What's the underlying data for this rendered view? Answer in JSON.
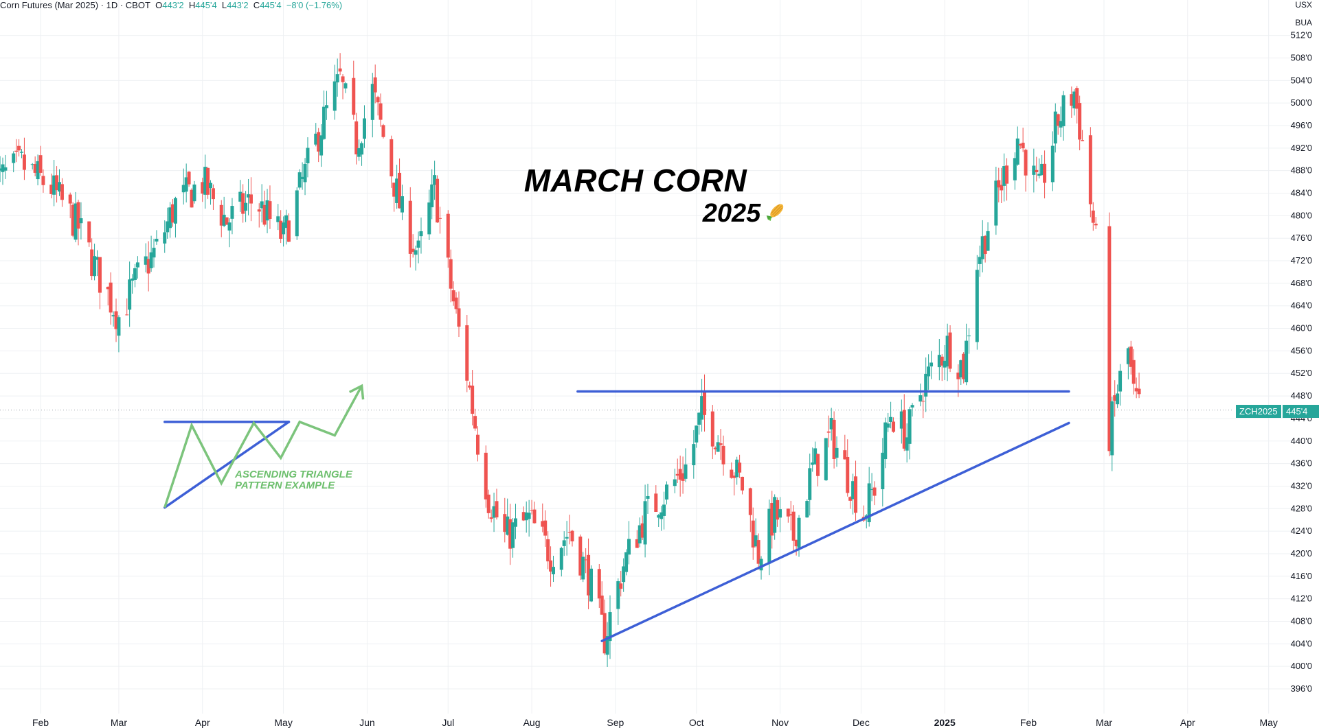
{
  "header": {
    "symbol": "Corn Futures (Mar 2025) · 1D · CBOT",
    "open_label": "O",
    "open": "443'2",
    "high_label": "H",
    "high": "445'4",
    "low_label": "L",
    "low": "443'2",
    "close_label": "C",
    "close": "445'4",
    "change": "−8'0 (−1.76%)"
  },
  "currency_unit": "USX",
  "quantity_unit": "BUA",
  "title": "MARCH CORN",
  "subtitle": "2025",
  "annotation": {
    "line1": "ASCENDING TRIANGLE",
    "line2": "PATTERN EXAMPLE"
  },
  "price_badge": {
    "symbol": "ZCH2025",
    "value": "445'4"
  },
  "colors": {
    "up": "#26a69a",
    "down": "#ef5350",
    "trendline": "#3d5fd6",
    "pattern": "#7cc47c",
    "grid": "#eef0f3",
    "text": "#131722"
  },
  "chart_data": {
    "type": "candlestick",
    "title": "MARCH CORN",
    "subtitle": "2025",
    "xlabel": "",
    "ylabel": "",
    "ylim": [
      393,
      514
    ],
    "y_ticks": [
      512,
      508,
      504,
      500,
      496,
      492,
      488,
      484,
      480,
      476,
      472,
      468,
      464,
      460,
      456,
      452,
      448,
      444,
      440,
      436,
      432,
      428,
      424,
      420,
      416,
      412,
      408,
      404,
      400,
      396
    ],
    "y_tick_labels": [
      "512'0",
      "508'0",
      "504'0",
      "500'0",
      "496'0",
      "492'0",
      "488'0",
      "484'0",
      "480'0",
      "476'0",
      "472'0",
      "468'0",
      "464'0",
      "460'0",
      "456'0",
      "452'0",
      "448'0",
      "444'0",
      "440'0",
      "436'0",
      "432'0",
      "428'0",
      "424'0",
      "420'0",
      "416'0",
      "412'0",
      "408'0",
      "404'0",
      "400'0",
      "396'0"
    ],
    "x_ticks": [
      {
        "date": "2024-02-01",
        "label": "Feb"
      },
      {
        "date": "2024-03-01",
        "label": "Mar"
      },
      {
        "date": "2024-04-01",
        "label": "Apr"
      },
      {
        "date": "2024-05-01",
        "label": "May"
      },
      {
        "date": "2024-06-01",
        "label": "Jun"
      },
      {
        "date": "2024-07-01",
        "label": "Jul"
      },
      {
        "date": "2024-08-01",
        "label": "Aug"
      },
      {
        "date": "2024-09-01",
        "label": "Sep"
      },
      {
        "date": "2024-10-01",
        "label": "Oct"
      },
      {
        "date": "2024-11-01",
        "label": "Nov"
      },
      {
        "date": "2024-12-01",
        "label": "Dec"
      },
      {
        "date": "2025-01-01",
        "label": "2025"
      },
      {
        "date": "2025-02-01",
        "label": "Feb"
      },
      {
        "date": "2025-03-01",
        "label": "Mar"
      },
      {
        "date": "2025-04-01",
        "label": "Apr"
      },
      {
        "date": "2025-05-01",
        "label": "May"
      }
    ],
    "last_price": 445.5,
    "price_path": [
      [
        "2024-01-15",
        486
      ],
      [
        "2024-01-25",
        489
      ],
      [
        "2024-02-05",
        485
      ],
      [
        "2024-02-15",
        478
      ],
      [
        "2024-02-22",
        470
      ],
      [
        "2024-03-01",
        462
      ],
      [
        "2024-03-08",
        469
      ],
      [
        "2024-03-15",
        474
      ],
      [
        "2024-03-22",
        482
      ],
      [
        "2024-04-01",
        486
      ],
      [
        "2024-04-10",
        479
      ],
      [
        "2024-04-20",
        483
      ],
      [
        "2024-05-01",
        476
      ],
      [
        "2024-05-08",
        486
      ],
      [
        "2024-05-15",
        496
      ],
      [
        "2024-05-22",
        504
      ],
      [
        "2024-05-28",
        493
      ],
      [
        "2024-06-03",
        502
      ],
      [
        "2024-06-08",
        492
      ],
      [
        "2024-06-14",
        480
      ],
      [
        "2024-06-20",
        473
      ],
      [
        "2024-06-26",
        485
      ],
      [
        "2024-07-01",
        470
      ],
      [
        "2024-07-04",
        462
      ],
      [
        "2024-07-08",
        452
      ],
      [
        "2024-07-12",
        440
      ],
      [
        "2024-07-16",
        430
      ],
      [
        "2024-07-22",
        423
      ],
      [
        "2024-07-31",
        426
      ],
      [
        "2024-08-08",
        420
      ],
      [
        "2024-08-15",
        424
      ],
      [
        "2024-08-22",
        416
      ],
      [
        "2024-08-28",
        405
      ],
      [
        "2024-09-04",
        418
      ],
      [
        "2024-09-12",
        427
      ],
      [
        "2024-09-20",
        431
      ],
      [
        "2024-09-28",
        436
      ],
      [
        "2024-10-03",
        445
      ],
      [
        "2024-10-10",
        440
      ],
      [
        "2024-10-18",
        432
      ],
      [
        "2024-10-24",
        420
      ],
      [
        "2024-10-30",
        427
      ],
      [
        "2024-11-06",
        423
      ],
      [
        "2024-11-13",
        435
      ],
      [
        "2024-11-20",
        441
      ],
      [
        "2024-11-26",
        434
      ],
      [
        "2024-12-02",
        427
      ],
      [
        "2024-12-06",
        432
      ],
      [
        "2024-12-12",
        445
      ],
      [
        "2024-12-18",
        441
      ],
      [
        "2024-12-24",
        450
      ],
      [
        "2025-01-02",
        457
      ],
      [
        "2025-01-08",
        453
      ],
      [
        "2025-01-13",
        472
      ],
      [
        "2025-01-20",
        483
      ],
      [
        "2025-01-28",
        494
      ],
      [
        "2025-02-05",
        484
      ],
      [
        "2025-02-12",
        497
      ],
      [
        "2025-02-18",
        502
      ],
      [
        "2025-02-22",
        490
      ],
      [
        "2025-02-26",
        475
      ],
      [
        "2025-03-01",
        455
      ],
      [
        "2025-03-03",
        441
      ],
      [
        "2025-03-06",
        449
      ],
      [
        "2025-03-10",
        456
      ],
      [
        "2025-03-12",
        448
      ],
      [
        "2025-03-14",
        445.5
      ]
    ],
    "gaps": [
      [
        "2025-02-27",
        "2025-03-02"
      ]
    ],
    "drawings": [
      {
        "name": "resistance-line",
        "from": [
          "2024-08-18",
          448.8
        ],
        "to": [
          "2025-02-16",
          448.8
        ]
      },
      {
        "name": "support-line",
        "from": [
          "2024-08-27",
          404.5
        ],
        "to": [
          "2025-02-16",
          443.2
        ]
      },
      {
        "name": "example-top-line",
        "from": [
          "2024-03-18",
          443.4
        ],
        "to": [
          "2024-05-03",
          443.4
        ]
      },
      {
        "name": "example-bottom-line",
        "from": [
          "2024-03-18",
          428.2
        ],
        "to": [
          "2024-05-03",
          443.4
        ]
      },
      {
        "name": "example-zigzag",
        "points": [
          [
            "2024-03-18",
            428.2
          ],
          [
            "2024-03-28",
            442.8
          ],
          [
            "2024-04-08",
            432.5
          ],
          [
            "2024-04-20",
            443.2
          ],
          [
            "2024-04-30",
            437
          ],
          [
            "2024-05-07",
            443.4
          ],
          [
            "2024-05-20",
            441
          ],
          [
            "2024-05-30",
            449.8
          ]
        ]
      }
    ]
  }
}
